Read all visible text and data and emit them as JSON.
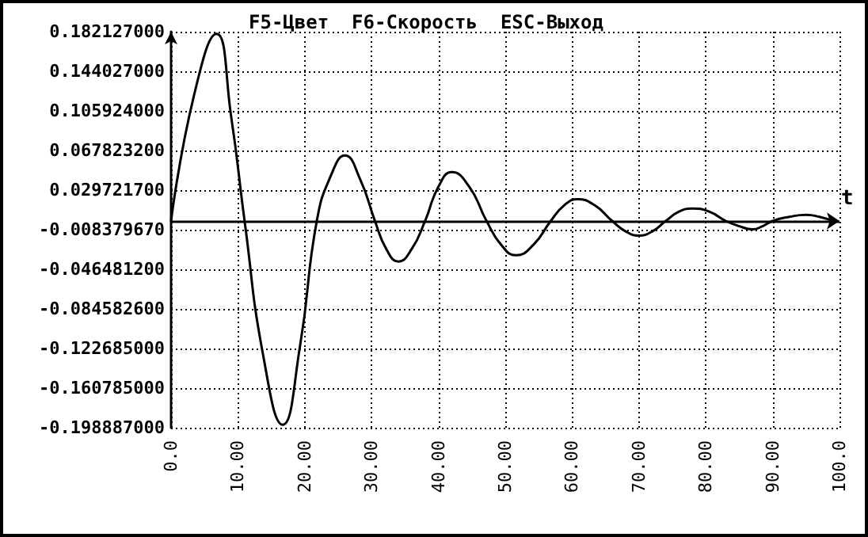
{
  "chart_data": {
    "type": "line",
    "title": "F5-Цвет  F6-Скорость  ESC-Выход",
    "xlabel": "t",
    "x": [
      0,
      3.4,
      6.8,
      9,
      11,
      13.8,
      16.7,
      19.3,
      21.8,
      24,
      26,
      28.3,
      30.5,
      32.2,
      34,
      36,
      38,
      40,
      42,
      44.6,
      47.2,
      49.4,
      51.6,
      54.2,
      56.8,
      58.8,
      60.8,
      63.4,
      66,
      68,
      70,
      72,
      74,
      76,
      78,
      80.5,
      83,
      85,
      87,
      88.5,
      90,
      92.5,
      95,
      97,
      99
    ],
    "series": [
      {
        "color": "#000000",
        "values": [
          0,
          0.12,
          0.18,
          0.1,
          0,
          -0.13,
          -0.196,
          -0.12,
          0,
          0.045,
          0.063,
          0.04,
          0,
          -0.027,
          -0.039,
          -0.027,
          0,
          0.033,
          0.047,
          0.033,
          0,
          -0.023,
          -0.033,
          -0.023,
          0,
          0.015,
          0.021,
          0.015,
          0,
          -0.01,
          -0.014,
          -0.01,
          0,
          0.009,
          0.012,
          0.009,
          0,
          -0.005,
          -0.008,
          -0.005,
          0,
          0.004,
          0.006,
          0.004,
          0
        ]
      }
    ],
    "xlim": [
      0,
      100
    ],
    "xticks": [
      {
        "value": 0,
        "label": "0.0"
      },
      {
        "value": 10,
        "label": "10.00"
      },
      {
        "value": 20,
        "label": "20.00"
      },
      {
        "value": 30,
        "label": "30.00"
      },
      {
        "value": 40,
        "label": "40.00"
      },
      {
        "value": 50,
        "label": "50.00"
      },
      {
        "value": 60,
        "label": "60.00"
      },
      {
        "value": 70,
        "label": "70.00"
      },
      {
        "value": 80,
        "label": "80.00"
      },
      {
        "value": 90,
        "label": "90.00"
      },
      {
        "value": 100,
        "label": "100.0"
      }
    ],
    "ylim": [
      -0.198887,
      0.182127
    ],
    "yticks": [
      {
        "value": 0.182127,
        "label": "0.182127000"
      },
      {
        "value": 0.144027,
        "label": "0.144027000"
      },
      {
        "value": 0.105924,
        "label": "0.105924000"
      },
      {
        "value": 0.0678232,
        "label": "0.067823200"
      },
      {
        "value": 0.0297217,
        "label": "0.029721700"
      },
      {
        "value": -0.00837967,
        "label": "-0.008379670"
      },
      {
        "value": -0.0464812,
        "label": "-0.046481200"
      },
      {
        "value": -0.0845826,
        "label": "-0.084582600"
      },
      {
        "value": -0.122685,
        "label": "-0.122685000"
      },
      {
        "value": -0.160785,
        "label": "-0.160785000"
      },
      {
        "value": -0.198887,
        "label": "-0.198887000"
      }
    ],
    "ref_lines": [
      {
        "axis": "y",
        "value": 0,
        "color": "#000000",
        "line_style": "solid"
      }
    ],
    "grid": true,
    "marker": "none",
    "line_style": "solid"
  }
}
